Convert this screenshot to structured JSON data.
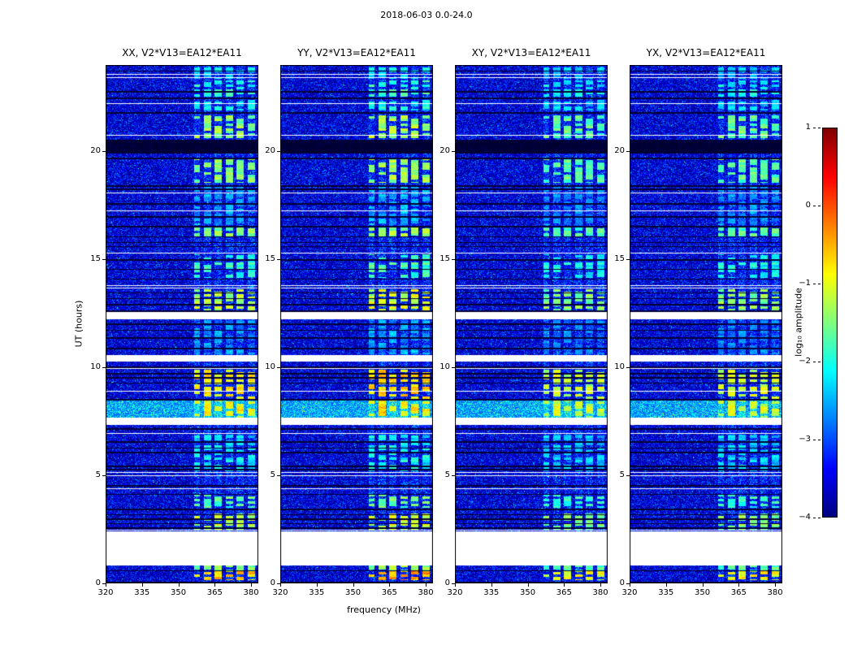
{
  "chart_data": {
    "type": "heatmap",
    "title": "2018-06-03 0.0-24.0",
    "xlabel": "frequency (MHz)",
    "ylabel": "UT (hours)",
    "x_range": [
      320,
      383
    ],
    "x_ticks": [
      320,
      335,
      350,
      365,
      380
    ],
    "y_range": [
      0,
      24
    ],
    "y_ticks": [
      0,
      5,
      10,
      15,
      20
    ],
    "panels": [
      {
        "title": "XX, V2*V13=EA12*EA11"
      },
      {
        "title": "YY, V2*V13=EA12*EA11"
      },
      {
        "title": "XY, V2*V13=EA12*EA11"
      },
      {
        "title": "YX, V2*V13=EA12*EA11"
      }
    ],
    "colorbar": {
      "label": "log₁₀ amplitude",
      "tick_labels": [
        "1",
        "0",
        "−1",
        "−2",
        "−3",
        "−4"
      ],
      "tick_values": [
        1,
        0,
        -1,
        -2,
        -3,
        -4
      ],
      "vmin": -4,
      "vmax": 1,
      "colormap": "jet"
    },
    "description": "Four dynamic spectra (UT hours vs frequency in MHz) of visibility amplitude for baseline V2*V13=EA12*EA11 in XX, YY, XY and YX polarizations. Background is low-level dark-blue noise near log10 amplitude -4; bright vertical sub-bands near 356-382 MHz are intermittent narrowband RFI; thin white horizontal rows are saturated/flagged scans; thin black rows are flagged scans; solid white blocks are data gaps.",
    "features": {
      "background_level": -3.9,
      "gaps_ut": [
        [
          0.85,
          2.42
        ],
        [
          7.38,
          7.62
        ],
        [
          10.3,
          10.56
        ],
        [
          12.27,
          12.52
        ]
      ],
      "white_rows_ut": [
        2.5,
        4.4,
        5.0,
        5.15,
        6.95,
        7.66,
        8.9,
        9.95,
        12.55,
        13.7,
        13.82,
        15.3,
        17.25,
        18.1,
        20.75,
        22.25,
        23.45,
        23.58
      ],
      "dark_rows_ut": [
        0.08,
        0.6,
        2.6,
        2.8,
        3.0,
        3.2,
        3.45,
        4.15,
        4.55,
        5.3,
        5.45,
        6.1,
        6.3,
        6.6,
        7.2,
        8.55,
        9.3,
        9.55,
        9.75,
        10.05,
        10.9,
        11.4,
        11.75,
        12.05,
        12.65,
        12.95,
        13.2,
        13.45,
        14.1,
        14.55,
        15.0,
        15.6,
        15.8,
        16.05,
        16.55,
        17.0,
        17.6,
        18.3,
        18.45,
        19.7,
        21.8,
        22.5,
        22.8,
        23.75
      ],
      "dark_bands_ut": [
        [
          19.95,
          20.55
        ]
      ],
      "elevated_rows_ut": [
        [
          7.63,
          8.5
        ]
      ],
      "rfi_subbands_mhz": [
        [
          356.5,
          359
        ],
        [
          360.5,
          363.5
        ],
        [
          365,
          368
        ],
        [
          369.5,
          372.5
        ],
        [
          374,
          377
        ],
        [
          378.5,
          381.5
        ]
      ],
      "rfi_blocks": [
        {
          "t": [
            0.15,
            0.58
          ],
          "level": -0.7
        },
        {
          "t": [
            0.6,
            0.84
          ],
          "level": -1.6
        },
        {
          "t": [
            2.45,
            3.25
          ],
          "level": -1.3
        },
        {
          "t": [
            3.5,
            4.1
          ],
          "level": -1.8
        },
        {
          "t": [
            5.2,
            6.9
          ],
          "level": -2.3
        },
        {
          "t": [
            7.65,
            8.5
          ],
          "level": -2.0
        },
        {
          "t": [
            8.5,
            9.9
          ],
          "level": -0.9
        },
        {
          "t": [
            10.6,
            12.2
          ],
          "level": -2.8
        },
        {
          "t": [
            12.55,
            13.6
          ],
          "level": -1.3
        },
        {
          "t": [
            14.15,
            15.25
          ],
          "level": -2.0
        },
        {
          "t": [
            16.05,
            16.5
          ],
          "level": -1.6
        },
        {
          "t": [
            16.6,
            18.4
          ],
          "level": -2.7
        },
        {
          "t": [
            18.55,
            19.65
          ],
          "level": -1.5
        },
        {
          "t": [
            20.6,
            21.65
          ],
          "level": -1.5
        },
        {
          "t": [
            21.9,
            22.4
          ],
          "level": -2.3
        },
        {
          "t": [
            22.55,
            23.3
          ],
          "level": -2.0
        },
        {
          "t": [
            23.35,
            23.9
          ],
          "level": -2.4
        }
      ],
      "band_gain_per_panel": [
        1.0,
        1.05,
        0.9,
        0.92
      ]
    }
  }
}
